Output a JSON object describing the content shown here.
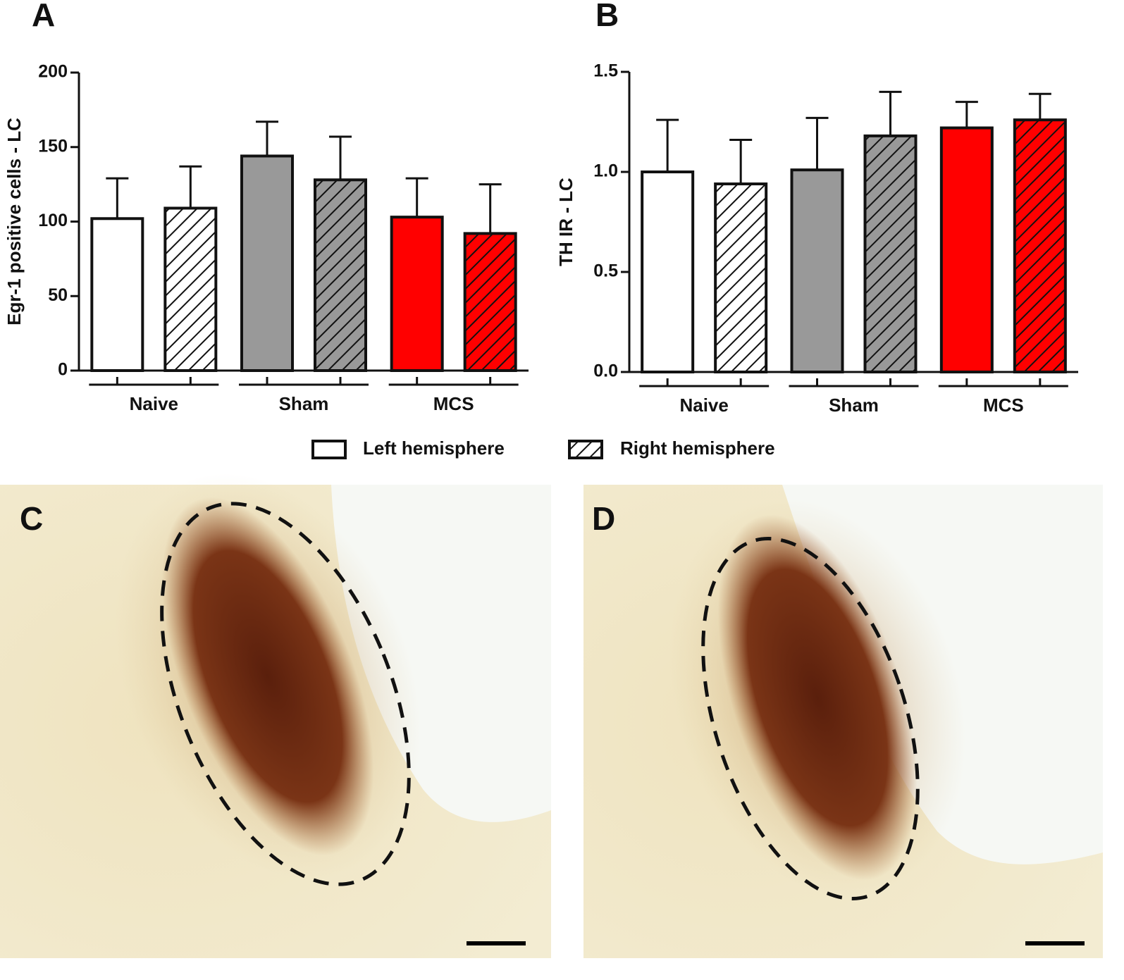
{
  "chart_data": [
    {
      "type": "bar",
      "label": "A",
      "y_label": "Egr-1 positive cells - LC",
      "categories": [
        "Naive",
        "Sham",
        "MCS"
      ],
      "category_colors": [
        "#ffffff",
        "#999999",
        "#ff0000"
      ],
      "series": [
        {
          "hatched": false,
          "values": [
            102,
            144,
            103
          ],
          "errors": [
            27,
            23,
            26
          ]
        },
        {
          "hatched": true,
          "values": [
            109,
            128,
            92
          ],
          "errors": [
            28,
            29,
            33
          ]
        }
      ],
      "ylim": [
        0,
        200
      ],
      "yticks": [
        0,
        50,
        100,
        150,
        200
      ]
    },
    {
      "type": "bar",
      "label": "B",
      "y_label": "TH IR - LC",
      "categories": [
        "Naive",
        "Sham",
        "MCS"
      ],
      "category_colors": [
        "#ffffff",
        "#999999",
        "#ff0000"
      ],
      "series": [
        {
          "hatched": false,
          "values": [
            1.0,
            1.01,
            1.22
          ],
          "errors": [
            0.26,
            0.26,
            0.13
          ]
        },
        {
          "hatched": true,
          "values": [
            0.94,
            1.18,
            1.26
          ],
          "errors": [
            0.22,
            0.22,
            0.13
          ]
        }
      ],
      "ylim": [
        0,
        1.5
      ],
      "yticks": [
        {
          "value": 0,
          "label": "0.0"
        },
        0.5,
        {
          "value": 1,
          "label": "1.0"
        },
        1.5
      ]
    }
  ],
  "legend": [
    {
      "name": "Left hemisphere",
      "hatched": false
    },
    {
      "name": "Right hemisphere",
      "hatched": true
    }
  ],
  "images": [
    {
      "label": "C"
    },
    {
      "label": "D"
    }
  ]
}
